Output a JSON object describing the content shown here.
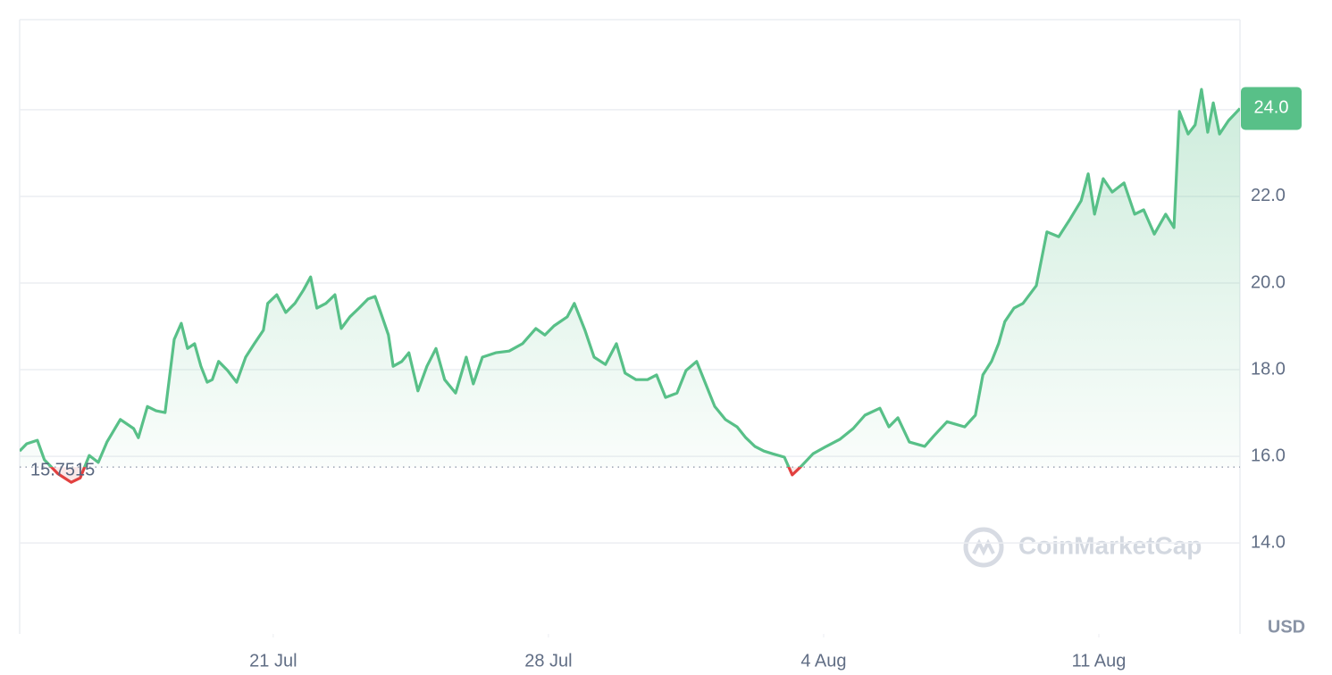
{
  "chart_data": {
    "type": "line",
    "x": [
      14.55,
      14.73,
      15.0,
      15.18,
      15.52,
      15.86,
      16.09,
      16.32,
      16.55,
      16.77,
      17.11,
      17.45,
      17.57,
      17.8,
      18.02,
      18.25,
      18.48,
      18.66,
      18.82,
      19.0,
      19.16,
      19.32,
      19.45,
      19.61,
      19.84,
      20.07,
      20.3,
      20.52,
      20.75,
      20.86,
      21.09,
      21.32,
      21.55,
      21.77,
      21.95,
      22.11,
      22.34,
      22.57,
      22.73,
      22.95,
      23.18,
      23.41,
      23.59,
      23.77,
      23.93,
      24.05,
      24.27,
      24.45,
      24.68,
      24.91,
      25.14,
      25.36,
      25.64,
      25.91,
      26.09,
      26.32,
      26.66,
      27.0,
      27.34,
      27.68,
      27.91,
      28.14,
      28.48,
      28.66,
      28.93,
      29.16,
      29.45,
      29.73,
      29.95,
      30.23,
      30.52,
      30.75,
      30.98,
      31.27,
      31.5,
      31.77,
      32.0,
      32.23,
      32.5,
      32.8,
      33.02,
      33.25,
      33.48,
      33.7,
      34.0,
      34.2,
      34.43,
      34.73,
      35.07,
      35.41,
      35.75,
      36.05,
      36.43,
      36.66,
      36.89,
      37.18,
      37.57,
      37.8,
      38.14,
      38.59,
      38.86,
      39.05,
      39.27,
      39.45,
      39.61,
      39.84,
      40.07,
      40.41,
      40.68,
      40.98,
      41.27,
      41.55,
      41.73,
      41.89,
      42.11,
      42.34,
      42.64,
      42.91,
      43.14,
      43.41,
      43.7,
      43.91,
      44.05,
      44.27,
      44.45,
      44.61,
      44.77,
      44.91,
      45.07,
      45.3,
      45.59
    ],
    "values": [
      16.12,
      16.29,
      16.37,
      15.92,
      15.6,
      15.4,
      15.5,
      16.02,
      15.86,
      16.33,
      16.85,
      16.64,
      16.43,
      17.15,
      17.05,
      17.01,
      18.7,
      19.07,
      18.49,
      18.6,
      18.08,
      17.71,
      17.77,
      18.19,
      17.98,
      17.71,
      18.29,
      18.6,
      18.91,
      19.53,
      19.73,
      19.32,
      19.53,
      19.84,
      20.14,
      19.42,
      19.53,
      19.73,
      18.95,
      19.22,
      19.42,
      19.63,
      19.69,
      19.22,
      18.8,
      18.08,
      18.19,
      18.39,
      17.51,
      18.08,
      18.49,
      17.77,
      17.46,
      18.29,
      17.67,
      18.29,
      18.39,
      18.43,
      18.6,
      18.95,
      18.8,
      19.01,
      19.22,
      19.53,
      18.91,
      18.29,
      18.12,
      18.6,
      17.92,
      17.77,
      17.77,
      17.88,
      17.36,
      17.46,
      17.98,
      18.19,
      17.67,
      17.15,
      16.85,
      16.68,
      16.43,
      16.23,
      16.12,
      16.06,
      15.98,
      15.57,
      15.77,
      16.06,
      16.23,
      16.39,
      16.64,
      16.95,
      17.11,
      16.68,
      16.89,
      16.33,
      16.23,
      16.47,
      16.8,
      16.68,
      16.95,
      17.88,
      18.19,
      18.6,
      19.11,
      19.42,
      19.53,
      19.94,
      21.18,
      21.07,
      21.48,
      21.9,
      22.52,
      21.59,
      22.41,
      22.1,
      22.31,
      21.59,
      21.69,
      21.13,
      21.59,
      21.28,
      23.96,
      23.44,
      23.65,
      24.47,
      23.48,
      24.16,
      23.44,
      23.75,
      24.03
    ],
    "color": "#58c088",
    "down_color": "#e2403f",
    "baseline": 15.7515,
    "price_label": "24.0",
    "xlim": [
      14.55,
      45.59
    ],
    "xticks": [
      {
        "value": 21,
        "label": "21 Jul"
      },
      {
        "value": 28,
        "label": "28 Jul"
      },
      {
        "value": 35,
        "label": "4 Aug"
      },
      {
        "value": 42,
        "label": "11 Aug"
      }
    ],
    "ylim": [
      11.9,
      26.08
    ],
    "yticks": [
      {
        "value": 14,
        "label": "14.0"
      },
      {
        "value": 16,
        "label": "16.0"
      },
      {
        "value": 18,
        "label": "18.0"
      },
      {
        "value": 20,
        "label": "20.0"
      },
      {
        "value": 22,
        "label": "22.0"
      },
      {
        "value": 24,
        "label": "24.0"
      }
    ],
    "grid": true,
    "unit": "USD",
    "watermark": "CoinMarketCap"
  }
}
